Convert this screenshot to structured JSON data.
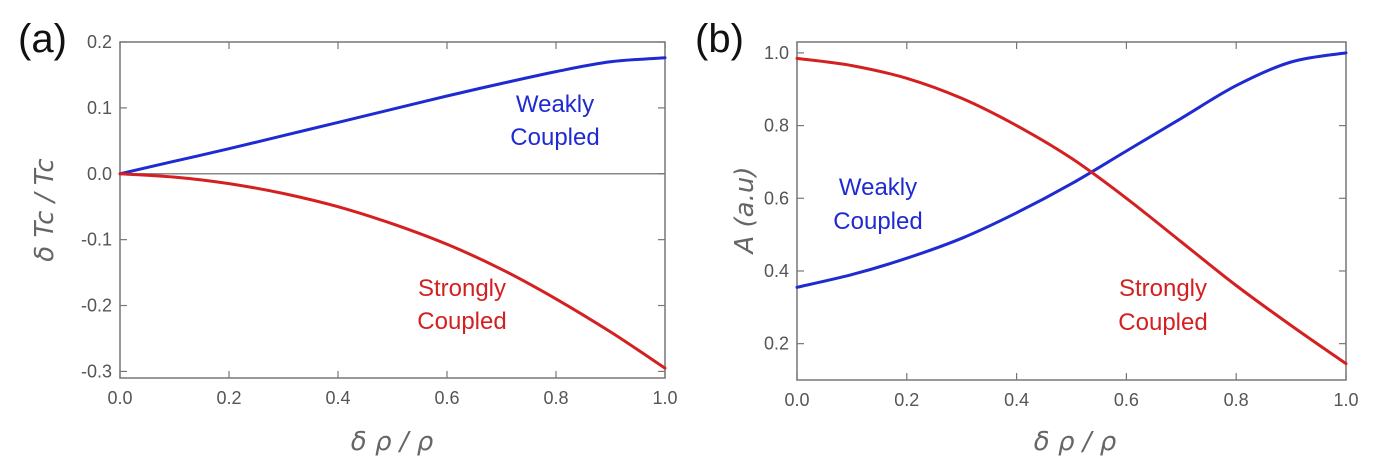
{
  "chart_data": [
    {
      "panel": "(a)",
      "type": "line",
      "xlabel": "δ ρ / ρ",
      "ylabel": "δ Tc / Tc",
      "xlim": [
        0.0,
        1.0
      ],
      "ylim": [
        -0.31,
        0.2
      ],
      "xticks": [
        "0.0",
        "0.2",
        "0.4",
        "0.6",
        "0.8",
        "1.0"
      ],
      "yticks": [
        "0.2",
        "0.1",
        "0.0",
        "-0.1",
        "-0.2",
        "-0.3"
      ],
      "zero_line": true,
      "series": [
        {
          "name": "Weakly Coupled",
          "label_lines": [
            "Weakly",
            "Coupled"
          ],
          "color": "#1f2bd1",
          "x": [
            0.0,
            0.1,
            0.2,
            0.3,
            0.4,
            0.5,
            0.6,
            0.7,
            0.8,
            0.9,
            1.0
          ],
          "y": [
            0.0,
            0.019,
            0.038,
            0.058,
            0.078,
            0.098,
            0.118,
            0.137,
            0.155,
            0.17,
            0.176
          ]
        },
        {
          "name": "Strongly Coupled",
          "label_lines": [
            "Strongly",
            "Coupled"
          ],
          "color": "#d42020",
          "x": [
            0.0,
            0.1,
            0.2,
            0.3,
            0.4,
            0.5,
            0.6,
            0.7,
            0.8,
            0.9,
            1.0
          ],
          "y": [
            0.0,
            -0.005,
            -0.015,
            -0.03,
            -0.05,
            -0.076,
            -0.107,
            -0.145,
            -0.19,
            -0.24,
            -0.295
          ]
        }
      ]
    },
    {
      "panel": "(b)",
      "type": "line",
      "xlabel": "δ ρ / ρ",
      "ylabel": "A  (a.u)",
      "xlim": [
        0.0,
        1.0
      ],
      "ylim": [
        0.1,
        1.03
      ],
      "xticks": [
        "0.0",
        "0.2",
        "0.4",
        "0.6",
        "0.8",
        "1.0"
      ],
      "yticks": [
        "1.0",
        "0.8",
        "0.6",
        "0.4",
        "0.2"
      ],
      "zero_line": false,
      "series": [
        {
          "name": "Weakly Coupled",
          "label_lines": [
            "Weakly",
            "Coupled"
          ],
          "color": "#1f2bd1",
          "x": [
            0.0,
            0.1,
            0.2,
            0.3,
            0.4,
            0.5,
            0.6,
            0.7,
            0.8,
            0.9,
            1.0
          ],
          "y": [
            0.355,
            0.39,
            0.435,
            0.49,
            0.56,
            0.64,
            0.73,
            0.82,
            0.91,
            0.975,
            1.0
          ]
        },
        {
          "name": "Strongly Coupled",
          "label_lines": [
            "Strongly",
            "Coupled"
          ],
          "color": "#d42020",
          "x": [
            0.0,
            0.1,
            0.2,
            0.3,
            0.4,
            0.5,
            0.6,
            0.7,
            0.8,
            0.9,
            1.0
          ],
          "y": [
            0.985,
            0.965,
            0.93,
            0.875,
            0.8,
            0.71,
            0.6,
            0.48,
            0.36,
            0.25,
            0.145
          ]
        }
      ]
    }
  ]
}
